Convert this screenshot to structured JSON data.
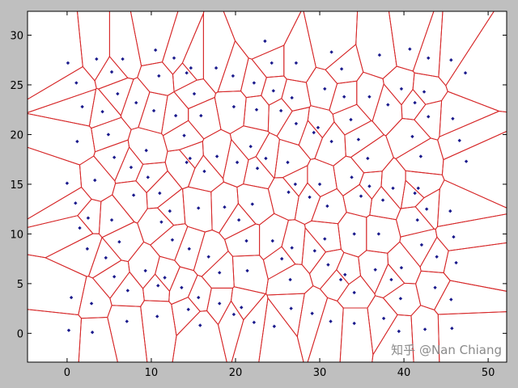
{
  "chart_data": {
    "type": "scatter",
    "subtype": "voronoi",
    "title": "",
    "xlabel": "",
    "ylabel": "",
    "xlim": [
      -4.7,
      52.2
    ],
    "ylim": [
      -2.9,
      32.4
    ],
    "xticks": [
      0,
      10,
      20,
      30,
      40,
      50
    ],
    "yticks": [
      0,
      5,
      10,
      15,
      20,
      25,
      30
    ],
    "grid": false,
    "colors": {
      "points": "#1a1a8c",
      "edges": "#d62728",
      "background": "#bfbfbf",
      "plot": "#ffffff"
    },
    "points": [
      [
        23.5,
        29.4
      ],
      [
        0.1,
        27.2
      ],
      [
        3.5,
        27.6
      ],
      [
        6.6,
        27.6
      ],
      [
        10.5,
        28.5
      ],
      [
        12.7,
        27.7
      ],
      [
        14.7,
        26.7
      ],
      [
        17.7,
        26.7
      ],
      [
        5.3,
        26.3
      ],
      [
        10.9,
        25.9
      ],
      [
        14.2,
        26.2
      ],
      [
        19.7,
        25.9
      ],
      [
        1.1,
        25.2
      ],
      [
        22.2,
        25.2
      ],
      [
        6.0,
        24.1
      ],
      [
        15.1,
        24.1
      ],
      [
        8.2,
        23.2
      ],
      [
        1.8,
        22.8
      ],
      [
        19.8,
        22.8
      ],
      [
        22.5,
        22.5
      ],
      [
        4.2,
        22.3
      ],
      [
        10.3,
        22.4
      ],
      [
        12.9,
        21.9
      ],
      [
        15.9,
        21.9
      ],
      [
        4.9,
        20.0
      ],
      [
        13.9,
        19.9
      ],
      [
        1.2,
        19.3
      ],
      [
        21.8,
        18.8
      ],
      [
        9.4,
        18.4
      ],
      [
        14.6,
        17.6
      ],
      [
        14.2,
        17.2
      ],
      [
        17.8,
        17.8
      ],
      [
        5.6,
        17.7
      ],
      [
        23.6,
        17.6
      ],
      [
        20.2,
        17.2
      ],
      [
        7.6,
        16.7
      ],
      [
        22.6,
        16.6
      ],
      [
        16.3,
        16.3
      ],
      [
        0.0,
        15.1
      ],
      [
        3.3,
        15.4
      ],
      [
        9.6,
        15.7
      ],
      [
        40.7,
        28.6
      ],
      [
        31.4,
        28.3
      ],
      [
        37.1,
        28.0
      ],
      [
        42.9,
        27.7
      ],
      [
        45.6,
        27.5
      ],
      [
        24.3,
        27.2
      ],
      [
        27.2,
        27.2
      ],
      [
        32.6,
        26.6
      ],
      [
        47.3,
        26.2
      ],
      [
        39.7,
        24.6
      ],
      [
        24.5,
        24.4
      ],
      [
        30.6,
        24.6
      ],
      [
        42.4,
        24.3
      ],
      [
        26.7,
        23.7
      ],
      [
        32.9,
        23.8
      ],
      [
        35.9,
        23.8
      ],
      [
        41.3,
        23.2
      ],
      [
        38.1,
        23.0
      ],
      [
        25.4,
        22.4
      ],
      [
        42.9,
        21.8
      ],
      [
        45.8,
        21.6
      ],
      [
        27.2,
        21.1
      ],
      [
        29.8,
        20.7
      ],
      [
        29.3,
        20.2
      ],
      [
        33.7,
        21.5
      ],
      [
        41.0,
        19.8
      ],
      [
        31.4,
        19.3
      ],
      [
        34.6,
        19.5
      ],
      [
        46.6,
        19.4
      ],
      [
        42.0,
        17.8
      ],
      [
        35.7,
        17.6
      ],
      [
        47.4,
        17.3
      ],
      [
        26.2,
        17.2
      ],
      [
        33.8,
        15.7
      ],
      [
        27.1,
        15.0
      ],
      [
        30.0,
        15.0
      ],
      [
        35.9,
        14.8
      ],
      [
        38.7,
        14.6
      ],
      [
        41.7,
        14.6
      ],
      [
        7.9,
        13.9
      ],
      [
        11.0,
        14.1
      ],
      [
        1.0,
        13.1
      ],
      [
        2.5,
        11.6
      ],
      [
        5.3,
        11.4
      ],
      [
        12.2,
        12.3
      ],
      [
        15.6,
        12.6
      ],
      [
        18.7,
        12.7
      ],
      [
        22.0,
        13.0
      ],
      [
        20.4,
        11.4
      ],
      [
        11.2,
        11.2
      ],
      [
        1.5,
        10.6
      ],
      [
        6.2,
        9.2
      ],
      [
        12.5,
        9.4
      ],
      [
        21.3,
        9.3
      ],
      [
        2.4,
        8.5
      ],
      [
        14.5,
        8.5
      ],
      [
        4.6,
        7.6
      ],
      [
        16.8,
        7.7
      ],
      [
        9.3,
        6.3
      ],
      [
        18.1,
        6.1
      ],
      [
        21.4,
        6.3
      ],
      [
        5.6,
        5.7
      ],
      [
        11.6,
        5.6
      ],
      [
        10.8,
        4.8
      ],
      [
        7.2,
        4.3
      ],
      [
        13.6,
        4.6
      ],
      [
        0.5,
        3.6
      ],
      [
        2.9,
        3.0
      ],
      [
        15.6,
        3.6
      ],
      [
        18.1,
        3.0
      ],
      [
        20.7,
        2.6
      ],
      [
        14.4,
        2.4
      ],
      [
        19.8,
        1.9
      ],
      [
        10.7,
        1.7
      ],
      [
        7.1,
        1.2
      ],
      [
        22.2,
        1.1
      ],
      [
        15.8,
        0.8
      ],
      [
        0.2,
        0.3
      ],
      [
        3.0,
        0.1
      ],
      [
        26.3,
        14.2
      ],
      [
        28.8,
        13.7
      ],
      [
        34.9,
        13.8
      ],
      [
        37.5,
        13.4
      ],
      [
        41.3,
        14.1
      ],
      [
        30.9,
        12.8
      ],
      [
        42.7,
        12.5
      ],
      [
        45.5,
        12.3
      ],
      [
        41.6,
        11.4
      ],
      [
        34.1,
        10.0
      ],
      [
        37.0,
        10.0
      ],
      [
        24.4,
        9.3
      ],
      [
        26.7,
        8.6
      ],
      [
        30.6,
        9.5
      ],
      [
        42.1,
        8.9
      ],
      [
        45.9,
        9.7
      ],
      [
        29.4,
        8.3
      ],
      [
        25.5,
        7.5
      ],
      [
        43.9,
        7.7
      ],
      [
        46.2,
        7.1
      ],
      [
        31.0,
        6.9
      ],
      [
        39.7,
        6.6
      ],
      [
        36.6,
        6.4
      ],
      [
        33.0,
        5.9
      ],
      [
        32.5,
        5.4
      ],
      [
        26.5,
        5.4
      ],
      [
        38.5,
        5.4
      ],
      [
        43.7,
        4.6
      ],
      [
        34.1,
        4.1
      ],
      [
        45.6,
        3.4
      ],
      [
        39.6,
        3.5
      ],
      [
        26.6,
        2.5
      ],
      [
        29.1,
        2.0
      ],
      [
        31.3,
        1.2
      ],
      [
        37.6,
        1.5
      ],
      [
        24.6,
        0.7
      ],
      [
        34.1,
        1.0
      ],
      [
        39.4,
        0.2
      ],
      [
        42.5,
        0.4
      ],
      [
        45.7,
        0.5
      ]
    ]
  },
  "watermark": "知乎 @Nan Chiang"
}
